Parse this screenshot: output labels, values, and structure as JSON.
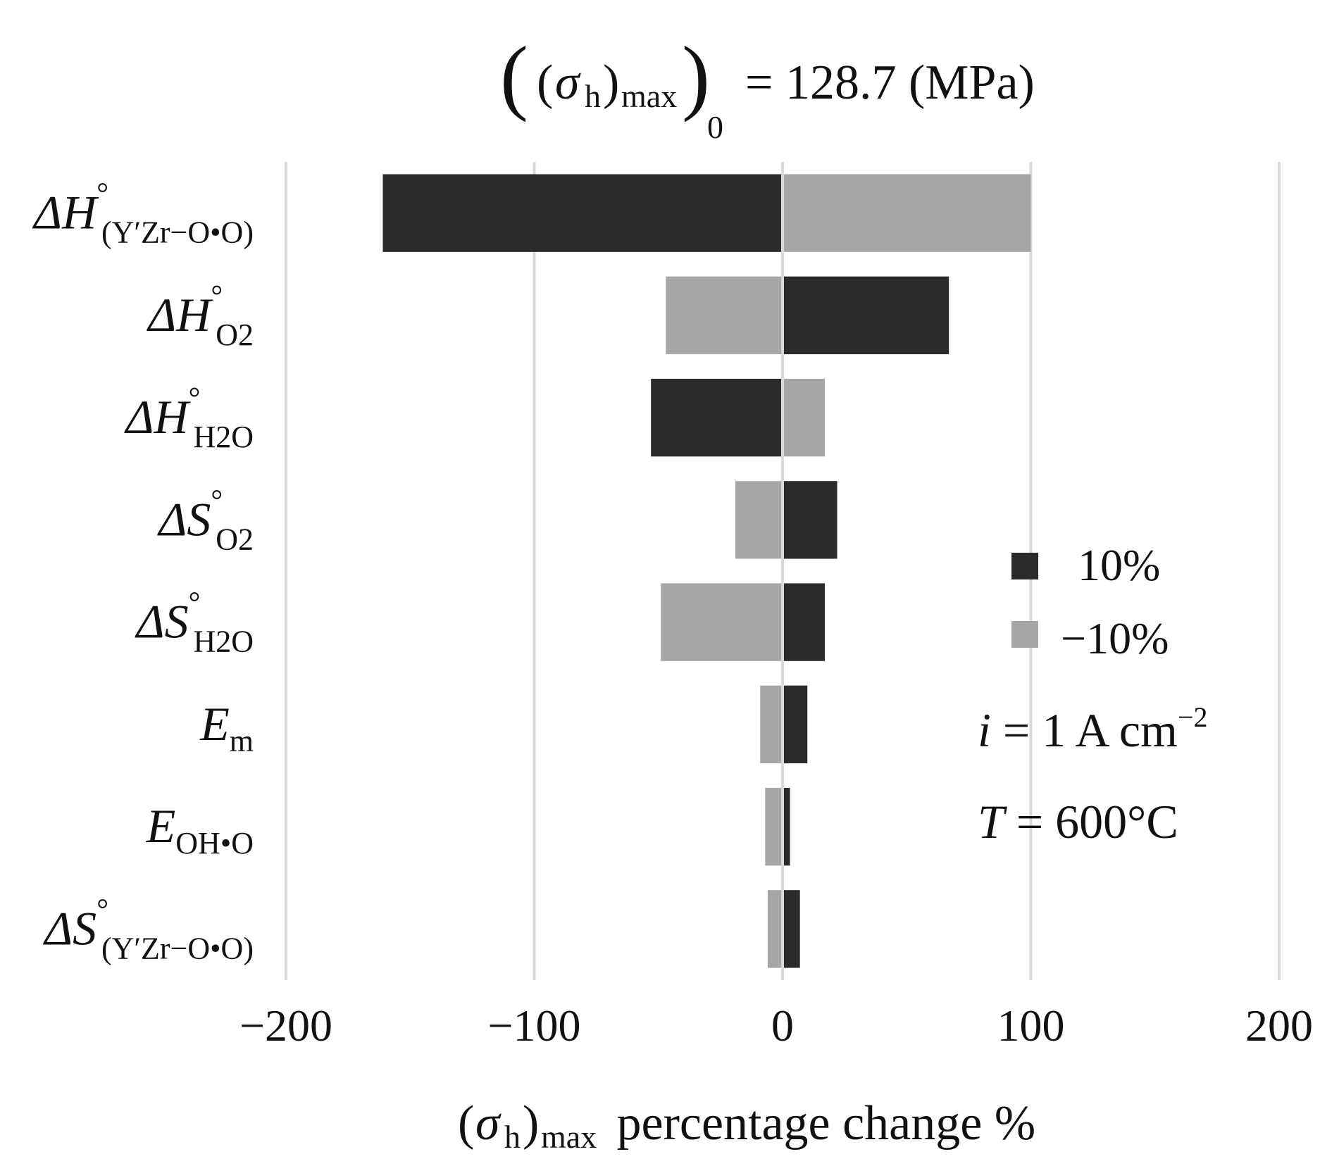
{
  "chart_data": {
    "type": "bar",
    "orientation": "horizontal",
    "title": {
      "prefix": "(",
      "sigma": "σ",
      "sub_h": "h",
      "close": ")",
      "sub_max": "max",
      "sub_0": "0",
      "value_text": "= 128.7 (MPa)"
    },
    "xlabel": {
      "open": "(",
      "sigma": "σ",
      "sub_h": "h",
      "close": ")",
      "sub_max": "max",
      "rest": " percentage change %"
    },
    "xlim": [
      -200,
      200
    ],
    "xticks": [
      -200,
      -100,
      0,
      100,
      200
    ],
    "xtick_labels": [
      "−200",
      "−100",
      "0",
      "100",
      "200"
    ],
    "grid": "vertical",
    "categories": [
      {
        "main": "ΔH",
        "sup": "°",
        "sub": "(Y′Zr−O•O)",
        "id": "dH-YZr-O"
      },
      {
        "main": "ΔH",
        "sup": "°",
        "sub": "O2",
        "id": "dH-O2"
      },
      {
        "main": "ΔH",
        "sup": "°",
        "sub": "H2O",
        "id": "dH-H2O"
      },
      {
        "main": "ΔS",
        "sup": "°",
        "sub": "O2",
        "id": "dS-O2"
      },
      {
        "main": "ΔS",
        "sup": "°",
        "sub": "H2O",
        "id": "dS-H2O"
      },
      {
        "main": "E",
        "sup": "",
        "sub": "m",
        "id": "Em"
      },
      {
        "main": "E",
        "sup": "",
        "sub": "OH•O",
        "id": "E-OH"
      },
      {
        "main": "ΔS",
        "sup": "°",
        "sub": "(Y′Zr−O•O)",
        "id": "dS-YZr-O"
      }
    ],
    "series": [
      {
        "name": "10%",
        "color": "#2b2b2b",
        "values": [
          -161,
          67,
          -53,
          22,
          17,
          10,
          3,
          7
        ]
      },
      {
        "name": "−10%",
        "color": "#a6a6a6",
        "values": [
          100,
          -47,
          17,
          -19,
          -49,
          -9,
          -7,
          -6
        ]
      }
    ],
    "legend": {
      "position": "right",
      "entries": [
        "10%",
        "−10%"
      ]
    },
    "annotations": {
      "current": {
        "var": "i",
        "text": " = 1 A cm",
        "sup": "−2"
      },
      "temperature": {
        "var": "T",
        "text": " = 600°C"
      }
    }
  }
}
